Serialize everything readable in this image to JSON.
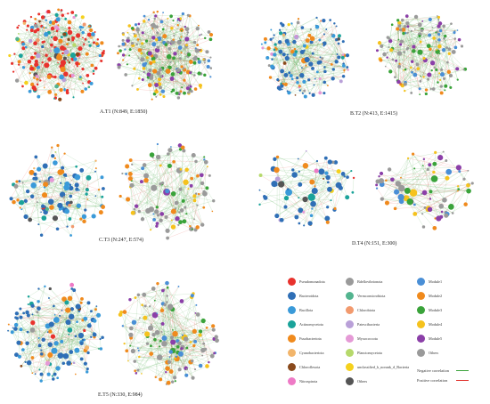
{
  "panels": [
    {
      "id": "A",
      "caption": "A.T1 (N:849, E:1850)"
    },
    {
      "id": "B",
      "caption": "B.T2 (N:413, E:1415)"
    },
    {
      "id": "C",
      "caption": "C.T3 (N:247, E:574)"
    },
    {
      "id": "D",
      "caption": "D.T4 (N:151, E:300)"
    },
    {
      "id": "E",
      "caption": "E.T5 (N:330, E:984)"
    }
  ],
  "legend": {
    "phyla": [
      {
        "label": "Pseudomonadota",
        "color": "#e8322d"
      },
      {
        "label": "Bacteroidota",
        "color": "#2f6fb6"
      },
      {
        "label": "Bacillota",
        "color": "#3a9ad9"
      },
      {
        "label": "Actinomycetota",
        "color": "#1aa39a"
      },
      {
        "label": "Fusobacteriota",
        "color": "#f08a1d"
      },
      {
        "label": "Cyanobacteriota",
        "color": "#f2b56b"
      },
      {
        "label": "Chloroflexota",
        "color": "#8a4a1c"
      },
      {
        "label": "Nitrospirota",
        "color": "#ee7ac6"
      },
      {
        "label": "Bdellovibrionota",
        "color": "#9a9a9a"
      },
      {
        "label": "Verrucomicrobiota",
        "color": "#53b48f"
      },
      {
        "label": "Chlorobiota",
        "color": "#f29a6e"
      },
      {
        "label": "Patescibacteria",
        "color": "#b9a0d8"
      },
      {
        "label": "Myxococcota",
        "color": "#e59ad6"
      },
      {
        "label": "Planctomycetota",
        "color": "#b6d96b"
      },
      {
        "label": "unclassified_k_norank_d_Bacteria",
        "color": "#f5d11d"
      },
      {
        "label": "Others",
        "color": "#555555"
      }
    ],
    "modules": [
      {
        "label": "Module1",
        "color": "#4a8fd6"
      },
      {
        "label": "Module2",
        "color": "#f08a1d"
      },
      {
        "label": "Module3",
        "color": "#3aa33a"
      },
      {
        "label": "Module4",
        "color": "#f5c21d"
      },
      {
        "label": "Module5",
        "color": "#8b3fa8"
      },
      {
        "label": "Others",
        "color": "#9a9a9a"
      }
    ],
    "correlations": [
      {
        "label": "Negative correlation",
        "color": "#3aa33a"
      },
      {
        "label": "Positive correlation",
        "color": "#e0302a"
      }
    ]
  }
}
